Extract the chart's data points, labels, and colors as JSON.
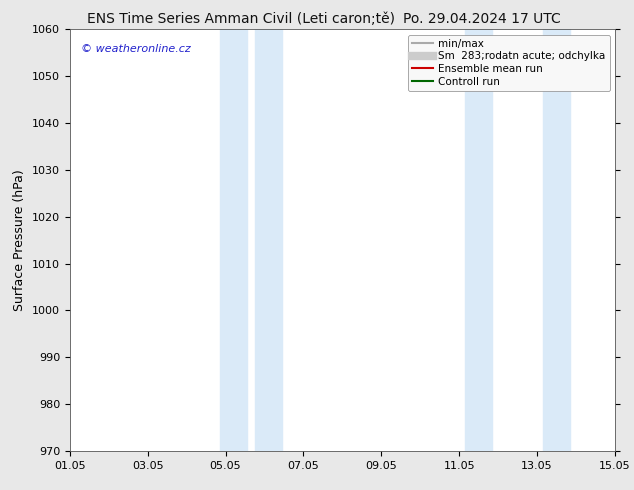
{
  "title": "ENS Time Series Amman Civil (Leti caron;tě)",
  "date_label": "Po. 29.04.2024 17 UTC",
  "ylabel": "Surface Pressure (hPa)",
  "ylim": [
    970,
    1060
  ],
  "yticks": [
    970,
    980,
    990,
    1000,
    1010,
    1020,
    1030,
    1040,
    1050,
    1060
  ],
  "xlim": [
    0,
    14
  ],
  "xtick_positions": [
    0,
    2,
    4,
    6,
    8,
    10,
    12,
    14
  ],
  "xtick_labels": [
    "01.05",
    "03.05",
    "05.05",
    "07.05",
    "09.05",
    "11.05",
    "13.05",
    "15.05"
  ],
  "watermark": "© weatheronline.cz",
  "watermark_color": "#2222cc",
  "shaded_bands": [
    {
      "x_start": 3.85,
      "x_end": 4.55
    },
    {
      "x_start": 4.75,
      "x_end": 5.45
    },
    {
      "x_start": 10.15,
      "x_end": 10.85
    },
    {
      "x_start": 12.15,
      "x_end": 12.85
    }
  ],
  "shade_color": "#daeaf8",
  "legend_entries": [
    {
      "label": "min/max",
      "color": "#aaaaaa",
      "lw": 1.5
    },
    {
      "label": "Sm  283;rodatn acute; odchylka",
      "color": "#cccccc",
      "lw": 6
    },
    {
      "label": "Ensemble mean run",
      "color": "#cc0000",
      "lw": 1.5
    },
    {
      "label": "Controll run",
      "color": "#006600",
      "lw": 1.5
    }
  ],
  "fig_bg_color": "#e8e8e8",
  "plot_bg_color": "#ffffff",
  "title_fontsize": 10,
  "tick_fontsize": 8,
  "ylabel_fontsize": 9,
  "legend_fontsize": 7.5
}
